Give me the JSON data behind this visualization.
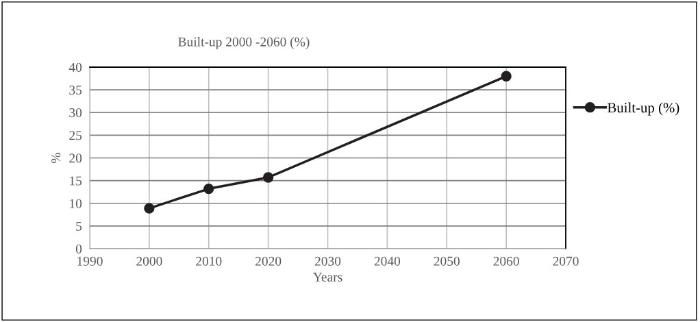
{
  "chart_data": {
    "type": "line",
    "title": "Built-up 2000 -2060 (%)",
    "xlabel": "Years",
    "ylabel": "%",
    "x": [
      2000,
      2010,
      2020,
      2060
    ],
    "series": [
      {
        "name": "Built-up (%)",
        "color": "#231f20",
        "values": [
          8.9,
          13.2,
          15.7,
          38
        ]
      }
    ],
    "xlim": [
      1990,
      2070
    ],
    "xticks": [
      1990,
      2000,
      2010,
      2020,
      2030,
      2040,
      2050,
      2060,
      2070
    ],
    "ylim": [
      0,
      40
    ],
    "yticks": [
      0,
      5,
      10,
      15,
      20,
      25,
      30,
      35,
      40
    ],
    "grid": true,
    "legend": "right",
    "marker": "circle",
    "line_style": "solid"
  }
}
